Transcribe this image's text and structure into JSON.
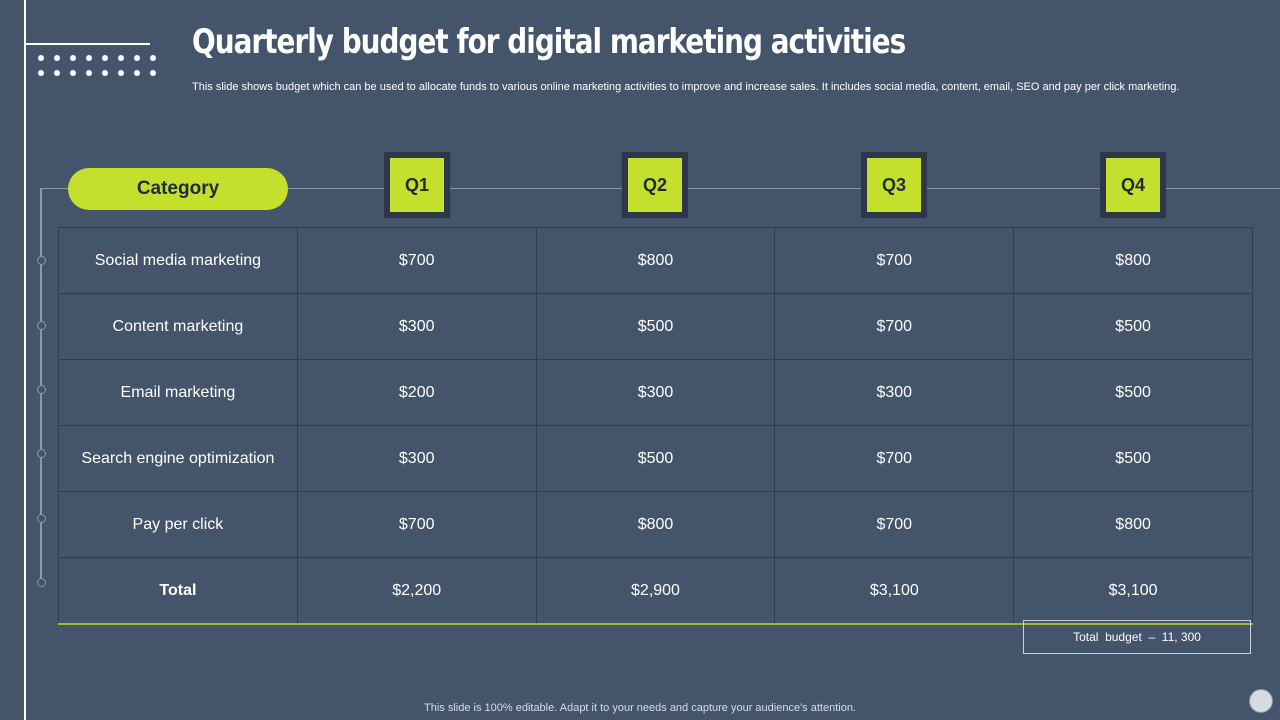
{
  "title": "Quarterly budget for digital marketing activities",
  "subtitle": "This slide shows budget which can be used to allocate funds to various online marketing activities to improve and increase sales. It includes social media, content, email, SEO and pay per click marketing.",
  "table": {
    "category_header": "Category",
    "quarters": [
      "Q1",
      "Q2",
      "Q3",
      "Q4"
    ],
    "rows": [
      {
        "label": "Social media marketing",
        "values": [
          "$700",
          "$800",
          "$700",
          "$800"
        ]
      },
      {
        "label": "Content marketing",
        "values": [
          "$300",
          "$500",
          "$700",
          "$500"
        ]
      },
      {
        "label": "Email marketing",
        "values": [
          "$200",
          "$300",
          "$300",
          "$500"
        ]
      },
      {
        "label": "Search engine optimization",
        "values": [
          "$300",
          "$500",
          "$700",
          "$500"
        ]
      },
      {
        "label": "Pay per click",
        "values": [
          "$700",
          "$800",
          "$700",
          "$800"
        ]
      },
      {
        "label": "Total",
        "values": [
          "$2,200",
          "$2,900",
          "$3,100",
          "$3,100"
        ]
      }
    ]
  },
  "total_budget": "Total  budget  –  11, 300",
  "footer": "This slide is 100% editable. Adapt it to your needs and capture your audience's attention.",
  "colors": {
    "background": "#44546a",
    "accent": "#c4df2c",
    "q_box_frame": "#2c3848"
  }
}
